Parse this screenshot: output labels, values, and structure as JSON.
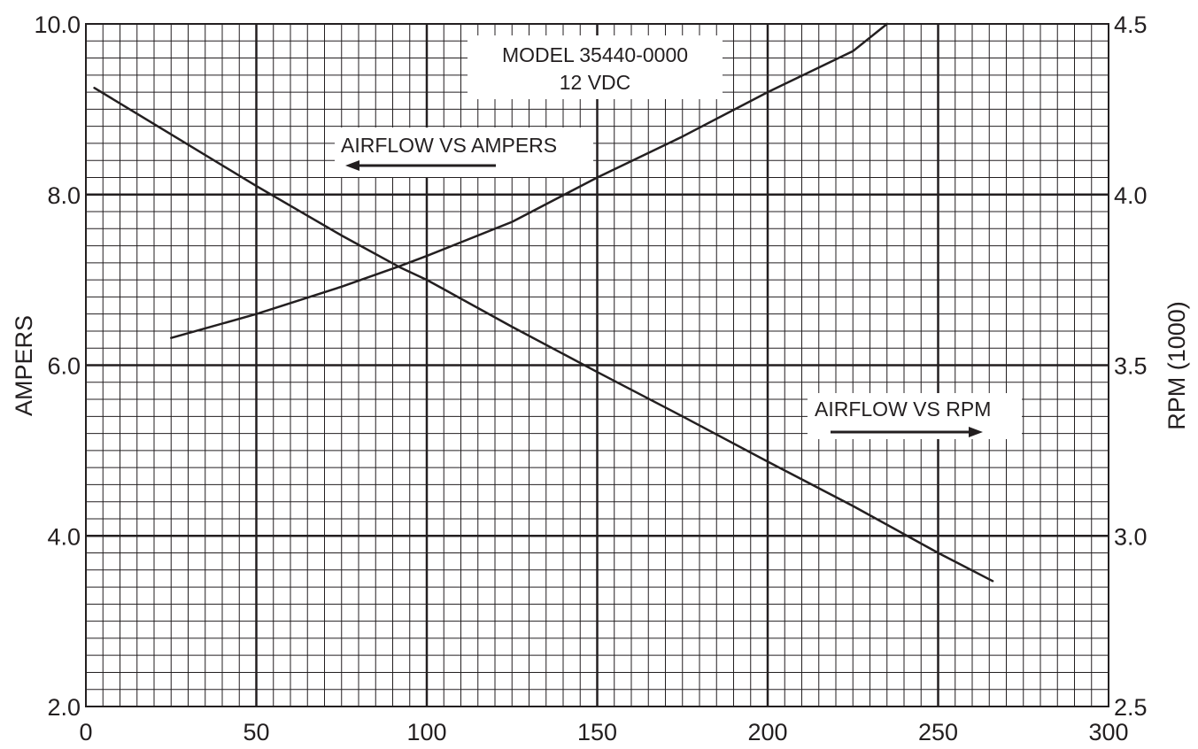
{
  "chart_data": {
    "type": "line",
    "title": "MODEL 35440-0000",
    "subtitle": "12 VDC",
    "xlabel": "",
    "ylabel_left": "AMPERS",
    "ylabel_right": "RPM (1000)",
    "xlim": [
      0,
      300
    ],
    "ylim_left": [
      2.0,
      10.0
    ],
    "ylim_right": [
      2.5,
      4.5
    ],
    "x_ticks": [
      "0",
      "50",
      "100",
      "150",
      "200",
      "250",
      "300"
    ],
    "y_left_ticks": [
      "2.0",
      "4.0",
      "6.0",
      "8.0",
      "10.0"
    ],
    "y_right_ticks": [
      "2.5",
      "3.0",
      "3.5",
      "4.0",
      "4.5"
    ],
    "grid": true,
    "series": [
      {
        "name": "AIRFLOW VS AMPERS",
        "axis": "left",
        "x": [
          2.5,
          50,
          75,
          92,
          100,
          125,
          150,
          175,
          200,
          225,
          250,
          266
        ],
        "y": [
          9.25,
          8.1,
          7.52,
          7.15,
          7.0,
          6.45,
          5.92,
          5.4,
          4.87,
          4.35,
          3.8,
          3.47
        ]
      },
      {
        "name": "AIRFLOW VS RPM",
        "axis": "right",
        "x": [
          25,
          50,
          75,
          92,
          100,
          125,
          150,
          175,
          200,
          225,
          235
        ],
        "y": [
          3.58,
          3.65,
          3.73,
          3.79,
          3.82,
          3.92,
          4.05,
          4.17,
          4.3,
          4.42,
          4.5
        ]
      }
    ],
    "annotations": [
      {
        "text": "AIRFLOW VS AMPERS",
        "arrow": "left"
      },
      {
        "text": "AIRFLOW VS RPM",
        "arrow": "right"
      }
    ]
  }
}
